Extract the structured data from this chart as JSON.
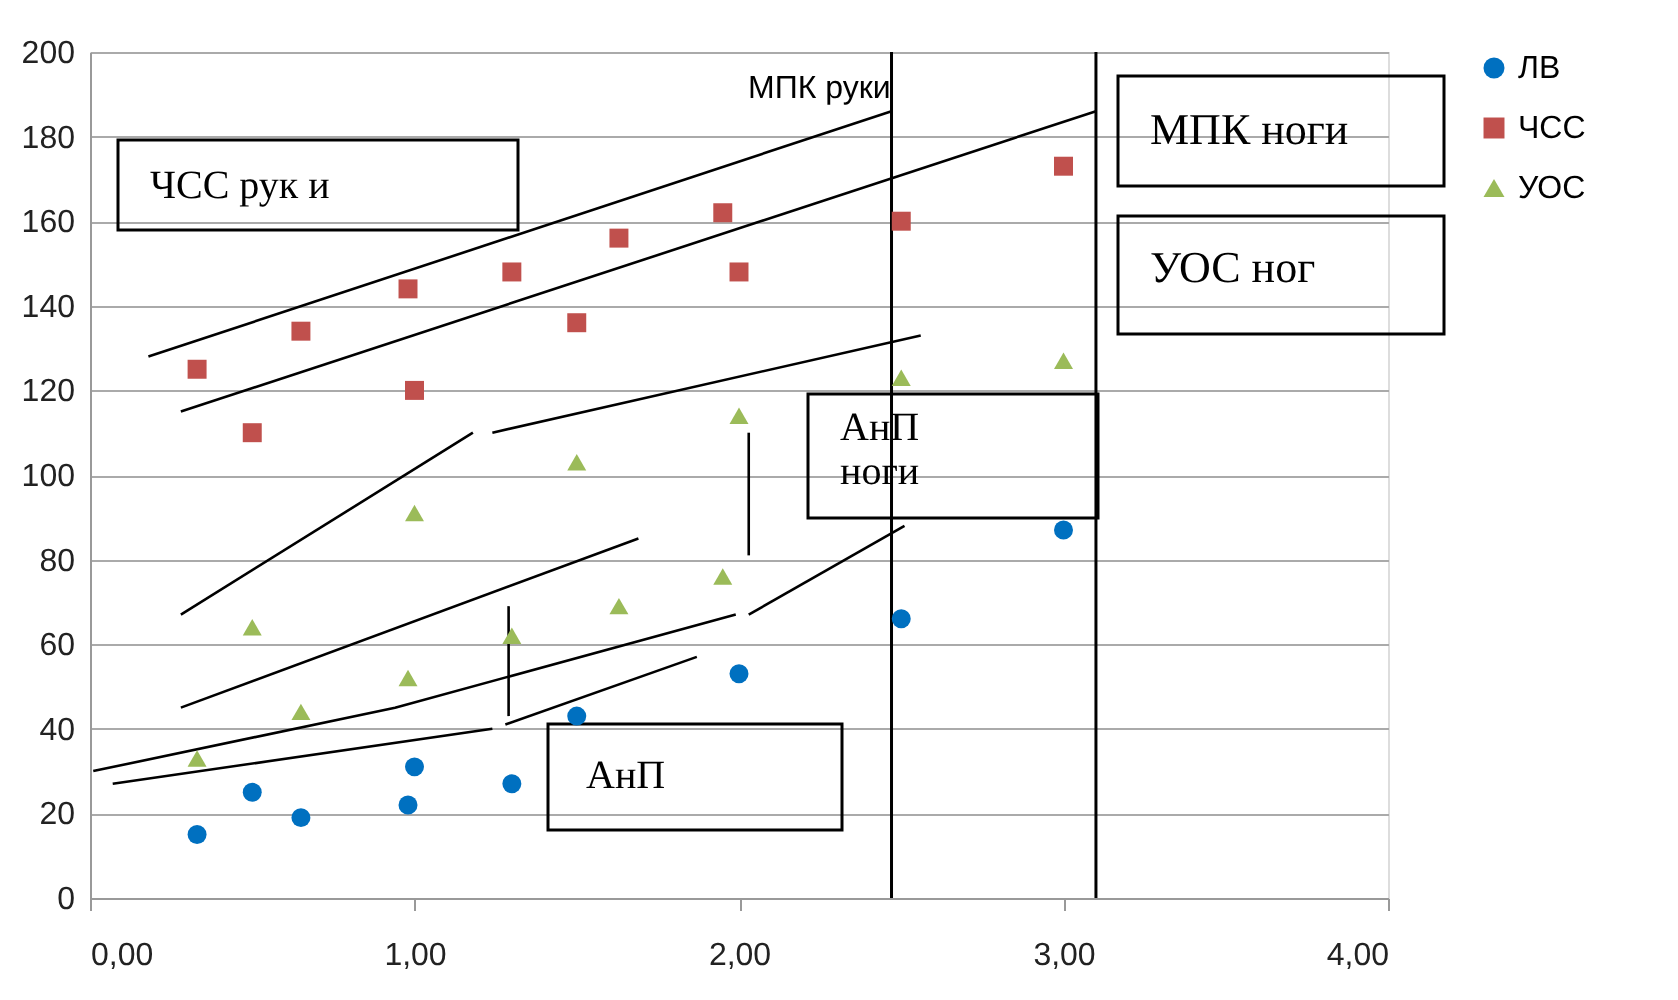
{
  "chart_data": {
    "type": "scatter",
    "xlim": [
      0,
      4
    ],
    "xticks": [
      {
        "value": 0,
        "label": "0,00"
      },
      {
        "value": 1,
        "label": "1,00"
      },
      {
        "value": 2,
        "label": "2,00"
      },
      {
        "value": 3,
        "label": "3,00"
      },
      {
        "value": 4,
        "label": "4,00"
      }
    ],
    "ylim": [
      0,
      200
    ],
    "yticks": [
      0,
      20,
      40,
      60,
      80,
      100,
      120,
      140,
      160,
      180,
      200
    ],
    "grid": "y",
    "legend": "right",
    "series": [
      {
        "name": "ЛВ",
        "color": "#0070c0",
        "marker": "circle",
        "x": [
          0.33,
          0.5,
          0.65,
          0.98,
          1.0,
          1.3,
          1.5,
          2.0,
          2.5,
          3.0
        ],
        "values": [
          15,
          25,
          19,
          22,
          31,
          27,
          43,
          53,
          66,
          87
        ]
      },
      {
        "name": "ЧСС",
        "color": "#c0504d",
        "marker": "square",
        "x": [
          0.33,
          0.5,
          0.65,
          0.98,
          1.0,
          1.3,
          1.5,
          1.63,
          1.95,
          2.0,
          2.5,
          3.0
        ],
        "values": [
          125,
          110,
          134,
          144,
          120,
          148,
          136,
          156,
          162,
          148,
          160,
          173
        ]
      },
      {
        "name": "УОС",
        "color": "#9bbb59",
        "marker": "triangle",
        "x": [
          0.33,
          0.5,
          0.65,
          0.98,
          1.0,
          1.3,
          1.5,
          1.63,
          1.95,
          2.0,
          2.5,
          3.0
        ],
        "values": [
          33,
          64,
          44,
          52,
          91,
          62,
          103,
          69,
          76,
          114,
          123,
          127
        ]
      },
      {
        "type": "line",
        "color": "#000000",
        "x": [
          0.18,
          2.47
        ],
        "values": [
          128,
          186
        ]
      },
      {
        "type": "line",
        "color": "#000000",
        "x": [
          0.28,
          3.1
        ],
        "values": [
          115,
          186
        ]
      },
      {
        "type": "line",
        "color": "#000000",
        "x": [
          0.28,
          1.18
        ],
        "values": [
          67,
          110
        ]
      },
      {
        "type": "line",
        "color": "#000000",
        "x": [
          1.24,
          2.56
        ],
        "values": [
          110,
          133
        ]
      },
      {
        "type": "line",
        "color": "#000000",
        "x": [
          0.28,
          1.69
        ],
        "values": [
          45,
          85
        ]
      },
      {
        "type": "line",
        "color": "#000000",
        "x": [
          0.01,
          0.94,
          1.99
        ],
        "values": [
          30,
          45,
          67
        ]
      },
      {
        "type": "line",
        "color": "#000000",
        "x": [
          2.03,
          2.51
        ],
        "values": [
          67,
          88
        ]
      },
      {
        "type": "line",
        "color": "#000000",
        "x": [
          0.07,
          1.24
        ],
        "values": [
          27,
          40
        ]
      },
      {
        "type": "line",
        "color": "#000000",
        "x": [
          1.28,
          1.87
        ],
        "values": [
          41,
          57
        ]
      },
      {
        "type": "line",
        "color": "#000000",
        "x": [
          1.29,
          1.29
        ],
        "values": [
          69,
          43
        ]
      },
      {
        "type": "line",
        "color": "#000000",
        "x": [
          2.03,
          2.03
        ],
        "values": [
          110,
          81
        ]
      }
    ],
    "ref_lines": [
      {
        "axis": "x",
        "value": 2.47,
        "color": "#000000"
      },
      {
        "axis": "x",
        "value": 3.1,
        "color": "#000000"
      }
    ],
    "annotations": [
      "МПК руки",
      "ЧСС рук и",
      "МПК ноги",
      "УОС ног",
      "АнП\nноги",
      "АнП"
    ]
  }
}
